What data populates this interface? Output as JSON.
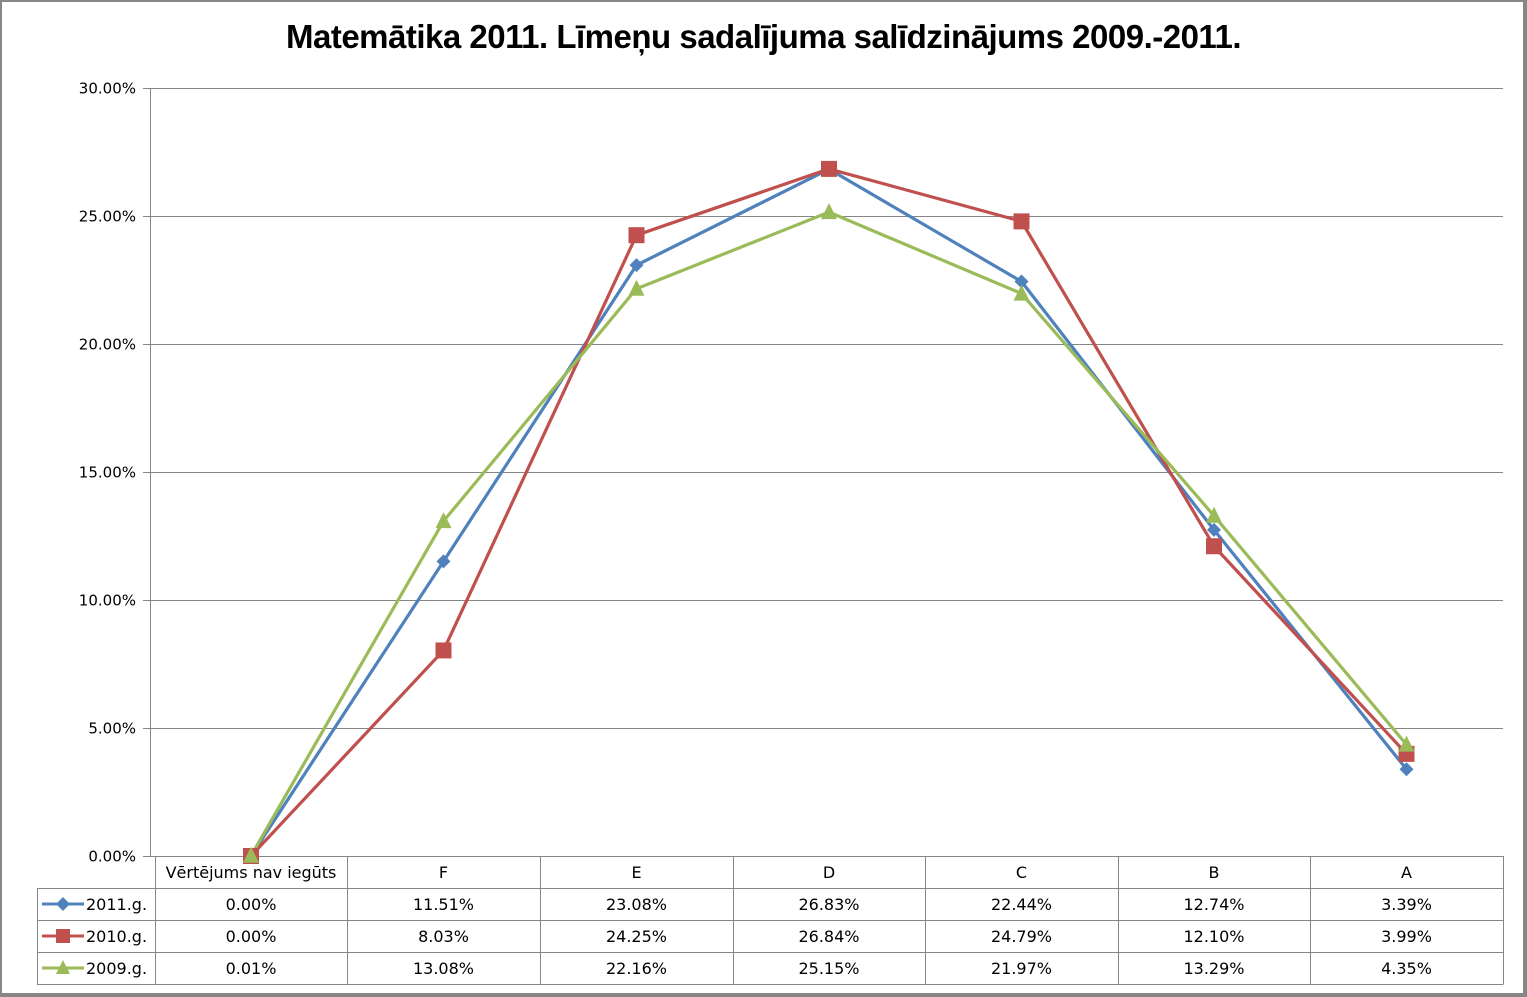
{
  "chart_data": {
    "type": "line",
    "title": "Matemātika 2011. Līmeņu sadalījuma salīdzinājums 2009.-2011.",
    "xlabel": "",
    "ylabel": "",
    "ylim": [
      0,
      0.3
    ],
    "y_ticks": [
      0,
      0.05,
      0.1,
      0.15,
      0.2,
      0.25,
      0.3
    ],
    "y_tick_labels": [
      "0.00%",
      "5.00%",
      "10.00%",
      "15.00%",
      "20.00%",
      "25.00%",
      "30.00%"
    ],
    "grid": true,
    "legend": "data-table-left",
    "categories": [
      "Vērtējums nav iegūts",
      "F",
      "E",
      "D",
      "C",
      "B",
      "A"
    ],
    "series": [
      {
        "name": "2011.g.",
        "color": "#4F81BD",
        "marker": "diamond",
        "values": [
          0.0,
          0.1151,
          0.2308,
          0.2683,
          0.2244,
          0.1274,
          0.0339
        ],
        "labels": [
          "0.00%",
          "11.51%",
          "23.08%",
          "26.83%",
          "22.44%",
          "12.74%",
          "3.39%"
        ]
      },
      {
        "name": "2010.g.",
        "color": "#C0504D",
        "marker": "square",
        "values": [
          0.0,
          0.0803,
          0.2425,
          0.2684,
          0.2479,
          0.121,
          0.0399
        ],
        "labels": [
          "0.00%",
          "8.03%",
          "24.25%",
          "26.84%",
          "24.79%",
          "12.10%",
          "3.99%"
        ]
      },
      {
        "name": "2009.g.",
        "color": "#9BBB59",
        "marker": "triangle",
        "values": [
          0.0001,
          0.1308,
          0.2216,
          0.2515,
          0.2197,
          0.1329,
          0.0435
        ],
        "labels": [
          "0.01%",
          "13.08%",
          "22.16%",
          "25.15%",
          "21.97%",
          "13.29%",
          "4.35%"
        ]
      }
    ]
  }
}
